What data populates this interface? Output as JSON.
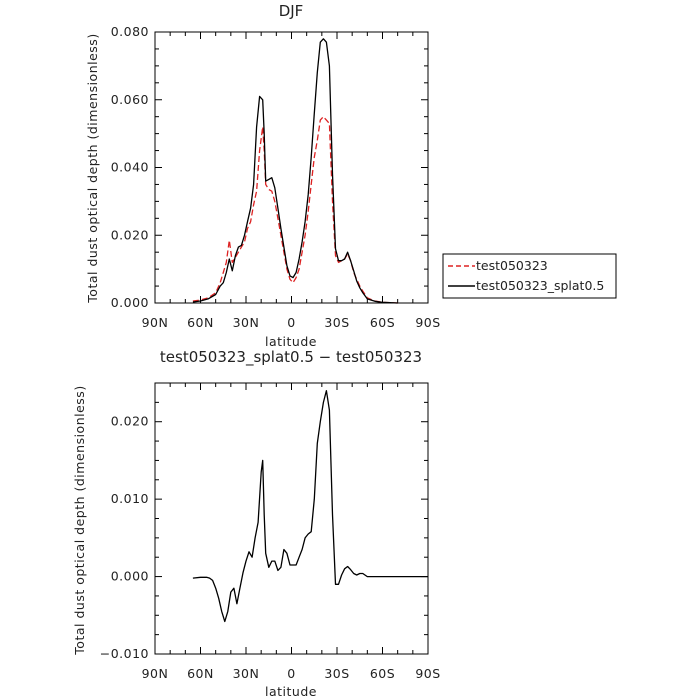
{
  "chart_data": [
    {
      "type": "line",
      "title": "DJF",
      "xlabel": "latitude",
      "ylabel": "Total dust optical depth (dimensionless)",
      "xlim": [
        90,
        -90
      ],
      "ylim": [
        0,
        0.08
      ],
      "xticks": [
        90,
        60,
        30,
        0,
        -30,
        -60,
        -90
      ],
      "xtick_labels": [
        "90N",
        "60N",
        "30N",
        "0",
        "30S",
        "60S",
        "90S"
      ],
      "yticks": [
        0,
        0.02,
        0.04,
        0.06,
        0.08
      ],
      "ytick_labels": [
        "0.000",
        "0.020",
        "0.040",
        "0.060",
        "0.080"
      ],
      "grid": false,
      "legend": {
        "placement": "right-outside",
        "colors": {
          "test050323": "#dd2222",
          "test050323_splat0.5": "#000000"
        }
      },
      "series": [
        {
          "name": "test050323",
          "color": "#dd2222",
          "style": "dashed",
          "x": [
            65,
            60,
            55,
            50,
            47,
            45,
            43,
            41,
            39,
            37,
            35,
            33,
            31,
            29,
            27,
            25,
            23,
            21,
            19,
            18,
            17,
            15,
            13,
            11,
            9,
            7,
            5,
            3,
            1,
            -1,
            -3,
            -5,
            -7,
            -9,
            -11,
            -13,
            -15,
            -17,
            -19,
            -21,
            -23,
            -25,
            -27,
            -29,
            -31,
            -33,
            -35,
            -37,
            -39,
            -41,
            -43,
            -45,
            -47,
            -50,
            -55,
            -60,
            -65,
            -70
          ],
          "y": [
            0.0006,
            0.0009,
            0.0015,
            0.003,
            0.006,
            0.009,
            0.012,
            0.0185,
            0.012,
            0.0135,
            0.015,
            0.0165,
            0.018,
            0.022,
            0.024,
            0.029,
            0.033,
            0.045,
            0.052,
            0.045,
            0.035,
            0.0335,
            0.033,
            0.03,
            0.025,
            0.02,
            0.015,
            0.01,
            0.007,
            0.006,
            0.0075,
            0.01,
            0.015,
            0.02,
            0.027,
            0.035,
            0.043,
            0.048,
            0.054,
            0.055,
            0.054,
            0.053,
            0.03,
            0.014,
            0.012,
            0.0125,
            0.013,
            0.0145,
            0.0125,
            0.009,
            0.007,
            0.005,
            0.0035,
            0.0015,
            0.0006,
            0.0002,
            0.0001,
            0.0
          ]
        },
        {
          "name": "test050323_splat0.5",
          "color": "#000000",
          "style": "solid",
          "x": [
            65,
            60,
            55,
            50,
            47,
            45,
            43,
            41,
            39,
            37,
            35,
            33,
            31,
            29,
            27,
            25,
            23,
            21,
            19,
            18,
            17,
            15,
            13,
            11,
            9,
            7,
            5,
            3,
            1,
            -1,
            -3,
            -5,
            -7,
            -9,
            -11,
            -13,
            -15,
            -17,
            -19,
            -21,
            -23,
            -25,
            -27,
            -29,
            -31,
            -33,
            -35,
            -37,
            -39,
            -41,
            -43,
            -45,
            -47,
            -50,
            -55,
            -60,
            -65,
            -70
          ],
          "y": [
            0.0003,
            0.0006,
            0.0012,
            0.0025,
            0.005,
            0.006,
            0.009,
            0.013,
            0.0095,
            0.014,
            0.0165,
            0.017,
            0.02,
            0.024,
            0.028,
            0.035,
            0.052,
            0.061,
            0.06,
            0.05,
            0.036,
            0.0365,
            0.037,
            0.034,
            0.028,
            0.022,
            0.0165,
            0.011,
            0.008,
            0.0075,
            0.009,
            0.013,
            0.018,
            0.024,
            0.032,
            0.043,
            0.056,
            0.068,
            0.077,
            0.078,
            0.077,
            0.07,
            0.038,
            0.016,
            0.0125,
            0.0125,
            0.013,
            0.015,
            0.0125,
            0.0095,
            0.0065,
            0.0045,
            0.003,
            0.0012,
            0.0005,
            0.0002,
            0.0001,
            0.0
          ]
        }
      ]
    },
    {
      "type": "line",
      "title": "test050323_splat0.5 − test050323",
      "xlabel": "latitude",
      "ylabel": "Total dust optical depth (dimensionless)",
      "xlim": [
        90,
        -90
      ],
      "ylim": [
        -0.01,
        0.025
      ],
      "xticks": [
        90,
        60,
        30,
        0,
        -30,
        -60,
        -90
      ],
      "xtick_labels": [
        "90N",
        "60N",
        "30N",
        "0",
        "30S",
        "60S",
        "90S"
      ],
      "yticks": [
        -0.01,
        0,
        0.01,
        0.02
      ],
      "ytick_labels": [
        "−0.010",
        "0.000",
        "0.010",
        "0.020"
      ],
      "grid": false,
      "series": [
        {
          "color": "#000000",
          "style": "solid",
          "x": [
            65,
            60,
            56,
            54,
            52,
            50,
            48,
            46,
            44,
            42,
            40,
            38,
            36,
            34,
            32,
            30,
            28,
            26,
            24,
            22,
            20,
            19,
            18,
            17,
            15,
            13,
            11,
            9,
            7,
            5,
            3,
            1,
            -1,
            -3,
            -5,
            -7,
            -9,
            -11,
            -13,
            -15,
            -17,
            -19,
            -21,
            -23,
            -25,
            -27,
            -29,
            -31,
            -33,
            -35,
            -37,
            -39,
            -41,
            -43,
            -45,
            -47,
            -50,
            -55,
            -60,
            -65,
            -70,
            -75,
            -80,
            -85,
            -90
          ],
          "y": [
            -0.0002,
            -0.0001,
            -0.0001,
            -0.0002,
            -0.0005,
            -0.0015,
            -0.0028,
            -0.0045,
            -0.0058,
            -0.0045,
            -0.002,
            -0.0015,
            -0.0035,
            -0.0015,
            0.0005,
            0.002,
            0.0032,
            0.0025,
            0.005,
            0.007,
            0.0135,
            0.015,
            0.008,
            0.003,
            0.0012,
            0.002,
            0.002,
            0.0008,
            0.0012,
            0.0035,
            0.003,
            0.0015,
            0.0015,
            0.0015,
            0.0025,
            0.0035,
            0.005,
            0.0055,
            0.0058,
            0.01,
            0.0172,
            0.02,
            0.0225,
            0.024,
            0.0215,
            0.008,
            -0.001,
            -0.001,
            0.0002,
            0.001,
            0.0013,
            0.0009,
            0.0004,
            0.0002,
            0.0004,
            0.0004,
            0.0,
            0.0,
            0.0,
            0.0,
            0.0,
            0.0,
            0.0,
            0.0,
            0.0
          ]
        }
      ]
    }
  ]
}
